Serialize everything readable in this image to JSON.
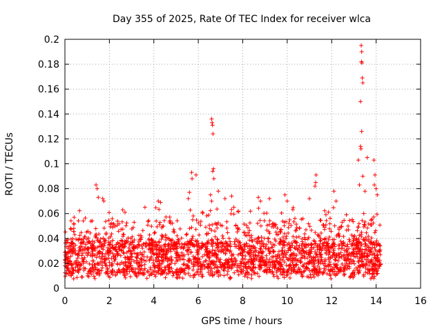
{
  "chart_data": {
    "type": "scatter",
    "title": "Day 355 of 2025, Rate Of TEC Index for receiver wlca",
    "xlabel": "GPS time / hours",
    "ylabel": "ROTI / TECUs",
    "xlim": [
      0,
      16
    ],
    "ylim": [
      0,
      0.2
    ],
    "xticks": [
      "0",
      "2",
      "4",
      "6",
      "8",
      "10",
      "12",
      "14",
      "16"
    ],
    "yticks": [
      "0",
      "0.02",
      "0.04",
      "0.06",
      "0.08",
      "0.1",
      "0.12",
      "0.14",
      "0.16",
      "0.18",
      "0.2"
    ],
    "grid": true,
    "marker": "+",
    "marker_color": "#ff0000",
    "data_extent_hours": [
      0,
      14.2
    ],
    "series": [
      {
        "name": "ROTI",
        "points": [
          [
            1.4,
            0.083
          ],
          [
            1.45,
            0.08
          ],
          [
            1.5,
            0.073
          ],
          [
            1.7,
            0.072
          ],
          [
            1.75,
            0.07
          ],
          [
            2.6,
            0.063
          ],
          [
            2.7,
            0.061
          ],
          [
            3.6,
            0.065
          ],
          [
            4.2,
            0.07
          ],
          [
            4.3,
            0.069
          ],
          [
            5.7,
            0.093
          ],
          [
            5.72,
            0.088
          ],
          [
            5.6,
            0.077
          ],
          [
            5.55,
            0.072
          ],
          [
            5.9,
            0.091
          ],
          [
            6.6,
            0.136
          ],
          [
            6.62,
            0.133
          ],
          [
            6.64,
            0.131
          ],
          [
            6.66,
            0.124
          ],
          [
            6.68,
            0.096
          ],
          [
            6.65,
            0.094
          ],
          [
            6.7,
            0.088
          ],
          [
            6.55,
            0.075
          ],
          [
            6.9,
            0.078
          ],
          [
            6.6,
            0.07
          ],
          [
            7.2,
            0.072
          ],
          [
            7.5,
            0.074
          ],
          [
            7.6,
            0.065
          ],
          [
            7.8,
            0.062
          ],
          [
            8.7,
            0.073
          ],
          [
            8.8,
            0.07
          ],
          [
            9.2,
            0.072
          ],
          [
            9.9,
            0.075
          ],
          [
            10.0,
            0.07
          ],
          [
            11.3,
            0.091
          ],
          [
            11.28,
            0.085
          ],
          [
            11.25,
            0.082
          ],
          [
            11.0,
            0.072
          ],
          [
            12.1,
            0.078
          ],
          [
            12.2,
            0.07
          ],
          [
            13.2,
            0.103
          ],
          [
            13.3,
            0.114
          ],
          [
            13.32,
            0.112
          ],
          [
            13.35,
            0.126
          ],
          [
            13.3,
            0.15
          ],
          [
            13.4,
            0.165
          ],
          [
            13.38,
            0.169
          ],
          [
            13.36,
            0.181
          ],
          [
            13.34,
            0.182
          ],
          [
            13.35,
            0.19
          ],
          [
            13.33,
            0.195
          ],
          [
            13.4,
            0.09
          ],
          [
            13.25,
            0.083
          ],
          [
            13.5,
            0.078
          ],
          [
            13.6,
            0.105
          ],
          [
            13.9,
            0.103
          ],
          [
            13.95,
            0.091
          ],
          [
            13.92,
            0.083
          ],
          [
            14.0,
            0.08
          ],
          [
            14.05,
            0.075
          ]
        ],
        "dense_band": {
          "x_range": [
            0,
            14.2
          ],
          "typical_y_range": [
            0.008,
            0.045
          ],
          "note": "dense cluster of ROTI values between about 0.01 and 0.04"
        }
      }
    ]
  }
}
